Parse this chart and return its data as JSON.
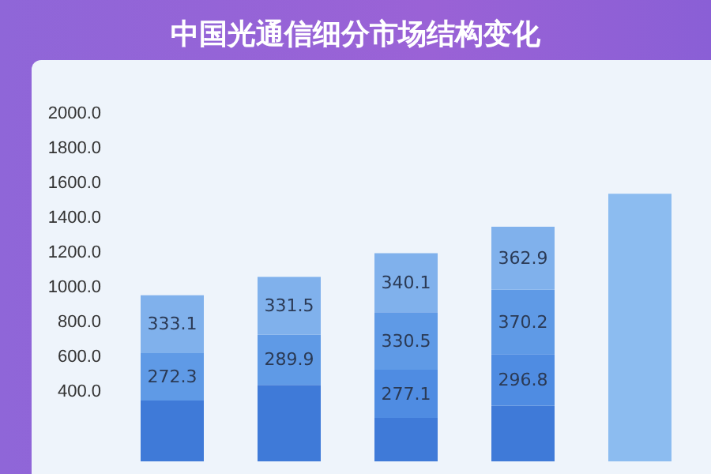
{
  "chart_data": {
    "type": "bar",
    "title": "中国光通信细分市场结构变化",
    "stacked": true,
    "grid": false,
    "categories": [
      null,
      null,
      null,
      null,
      null
    ],
    "ylim": [
      0,
      2000
    ],
    "yticks": [
      {
        "value": 400,
        "label": "400.0"
      },
      {
        "value": 600,
        "label": "600.0"
      },
      {
        "value": 800,
        "label": "800.0"
      },
      {
        "value": 1000,
        "label": "1000.0"
      },
      {
        "value": 1200,
        "label": "1200.0"
      },
      {
        "value": 1400,
        "label": "1400.0"
      },
      {
        "value": 1600,
        "label": "1600.0"
      },
      {
        "value": 1800,
        "label": "1800.0"
      },
      {
        "value": 2000,
        "label": "2000.0"
      }
    ],
    "series": [
      {
        "color": "#3f7ad8",
        "values": [
          350,
          440,
          250,
          320,
          null
        ]
      },
      {
        "color": "#4f8ce2",
        "values": [
          null,
          null,
          277.1,
          296.8,
          null
        ],
        "value_labels": [
          null,
          null,
          "277.1",
          "296.8",
          null
        ]
      },
      {
        "color": "#5f9ae6",
        "values": [
          272.3,
          289.9,
          330.5,
          370.2,
          null
        ],
        "value_labels": [
          "272.3",
          "289.9",
          "330.5",
          "370.2",
          null
        ]
      },
      {
        "color": "#80b1ec",
        "values": [
          333.1,
          331.5,
          340.1,
          362.9,
          null
        ],
        "value_labels": [
          "333.1",
          "331.5",
          "340.1",
          "362.9",
          null
        ]
      },
      {
        "color": "#8cbcf0",
        "values": [
          null,
          null,
          null,
          null,
          1540
        ]
      }
    ]
  }
}
